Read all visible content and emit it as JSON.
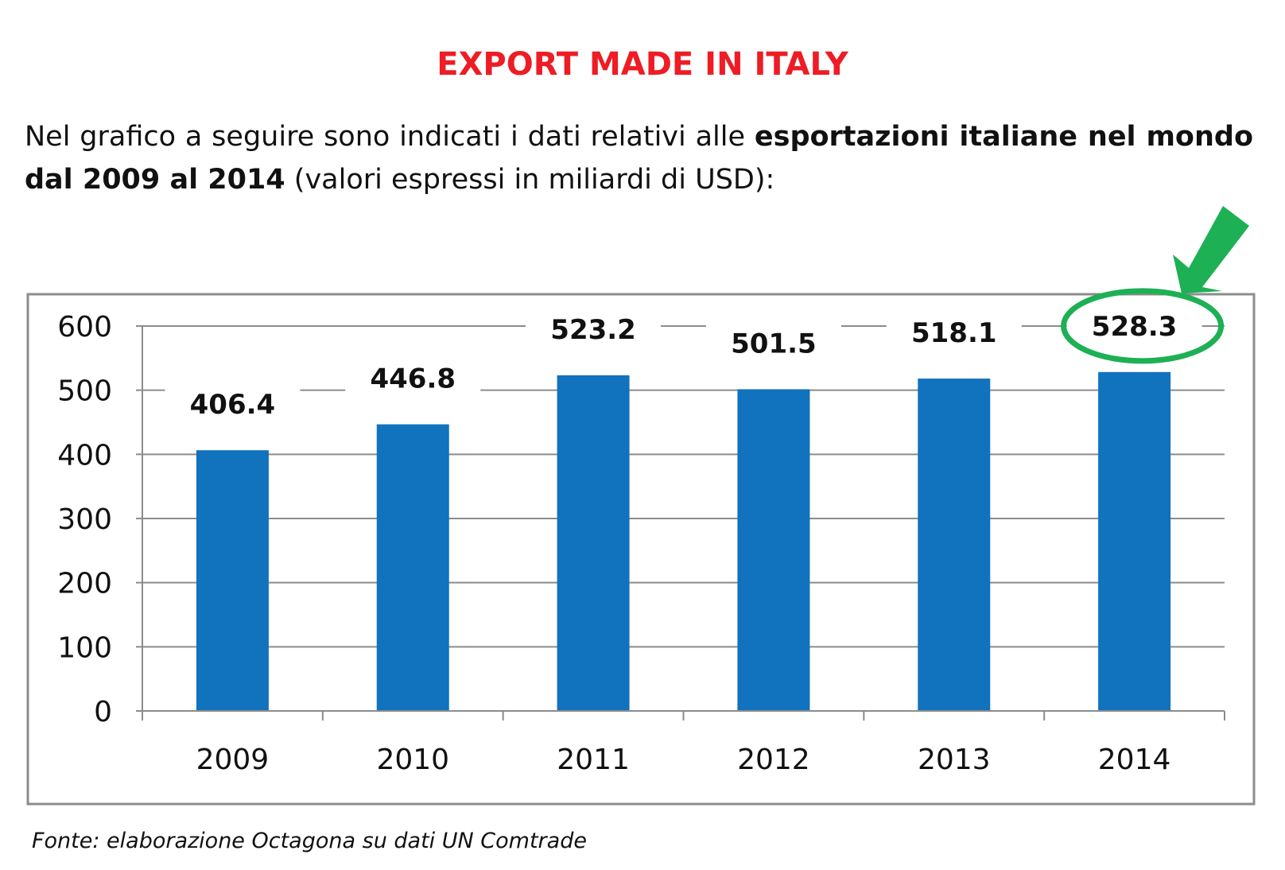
{
  "title": "EXPORT MADE IN ITALY",
  "intro": {
    "part1": "Nel grafico a seguire sono indicati i dati relativi alle ",
    "bold": "esportazioni italiane nel mondo dal 2009 al 2014",
    "part2": " (valori espressi in miliardi di USD):"
  },
  "source": "Fonte: elaborazione Octagona su dati UN Comtrade",
  "colors": {
    "title": "#ee1c25",
    "bar": "#1172be",
    "highlight": "#1db054",
    "grid": "#8c8c8c"
  },
  "chart_data": {
    "type": "bar",
    "categories": [
      "2009",
      "2010",
      "2011",
      "2012",
      "2013",
      "2014"
    ],
    "values": [
      406.4,
      446.8,
      523.2,
      501.5,
      518.1,
      528.3
    ],
    "labels": [
      "406.4",
      "446.8",
      "523.2",
      "501.5",
      "518.1",
      "528.3"
    ],
    "yticks": [
      "0",
      "100",
      "200",
      "300",
      "400",
      "500",
      "600"
    ],
    "ylim": [
      0,
      600
    ],
    "grid": true,
    "highlight_category": "2014",
    "xlabel": "",
    "ylabel": ""
  }
}
